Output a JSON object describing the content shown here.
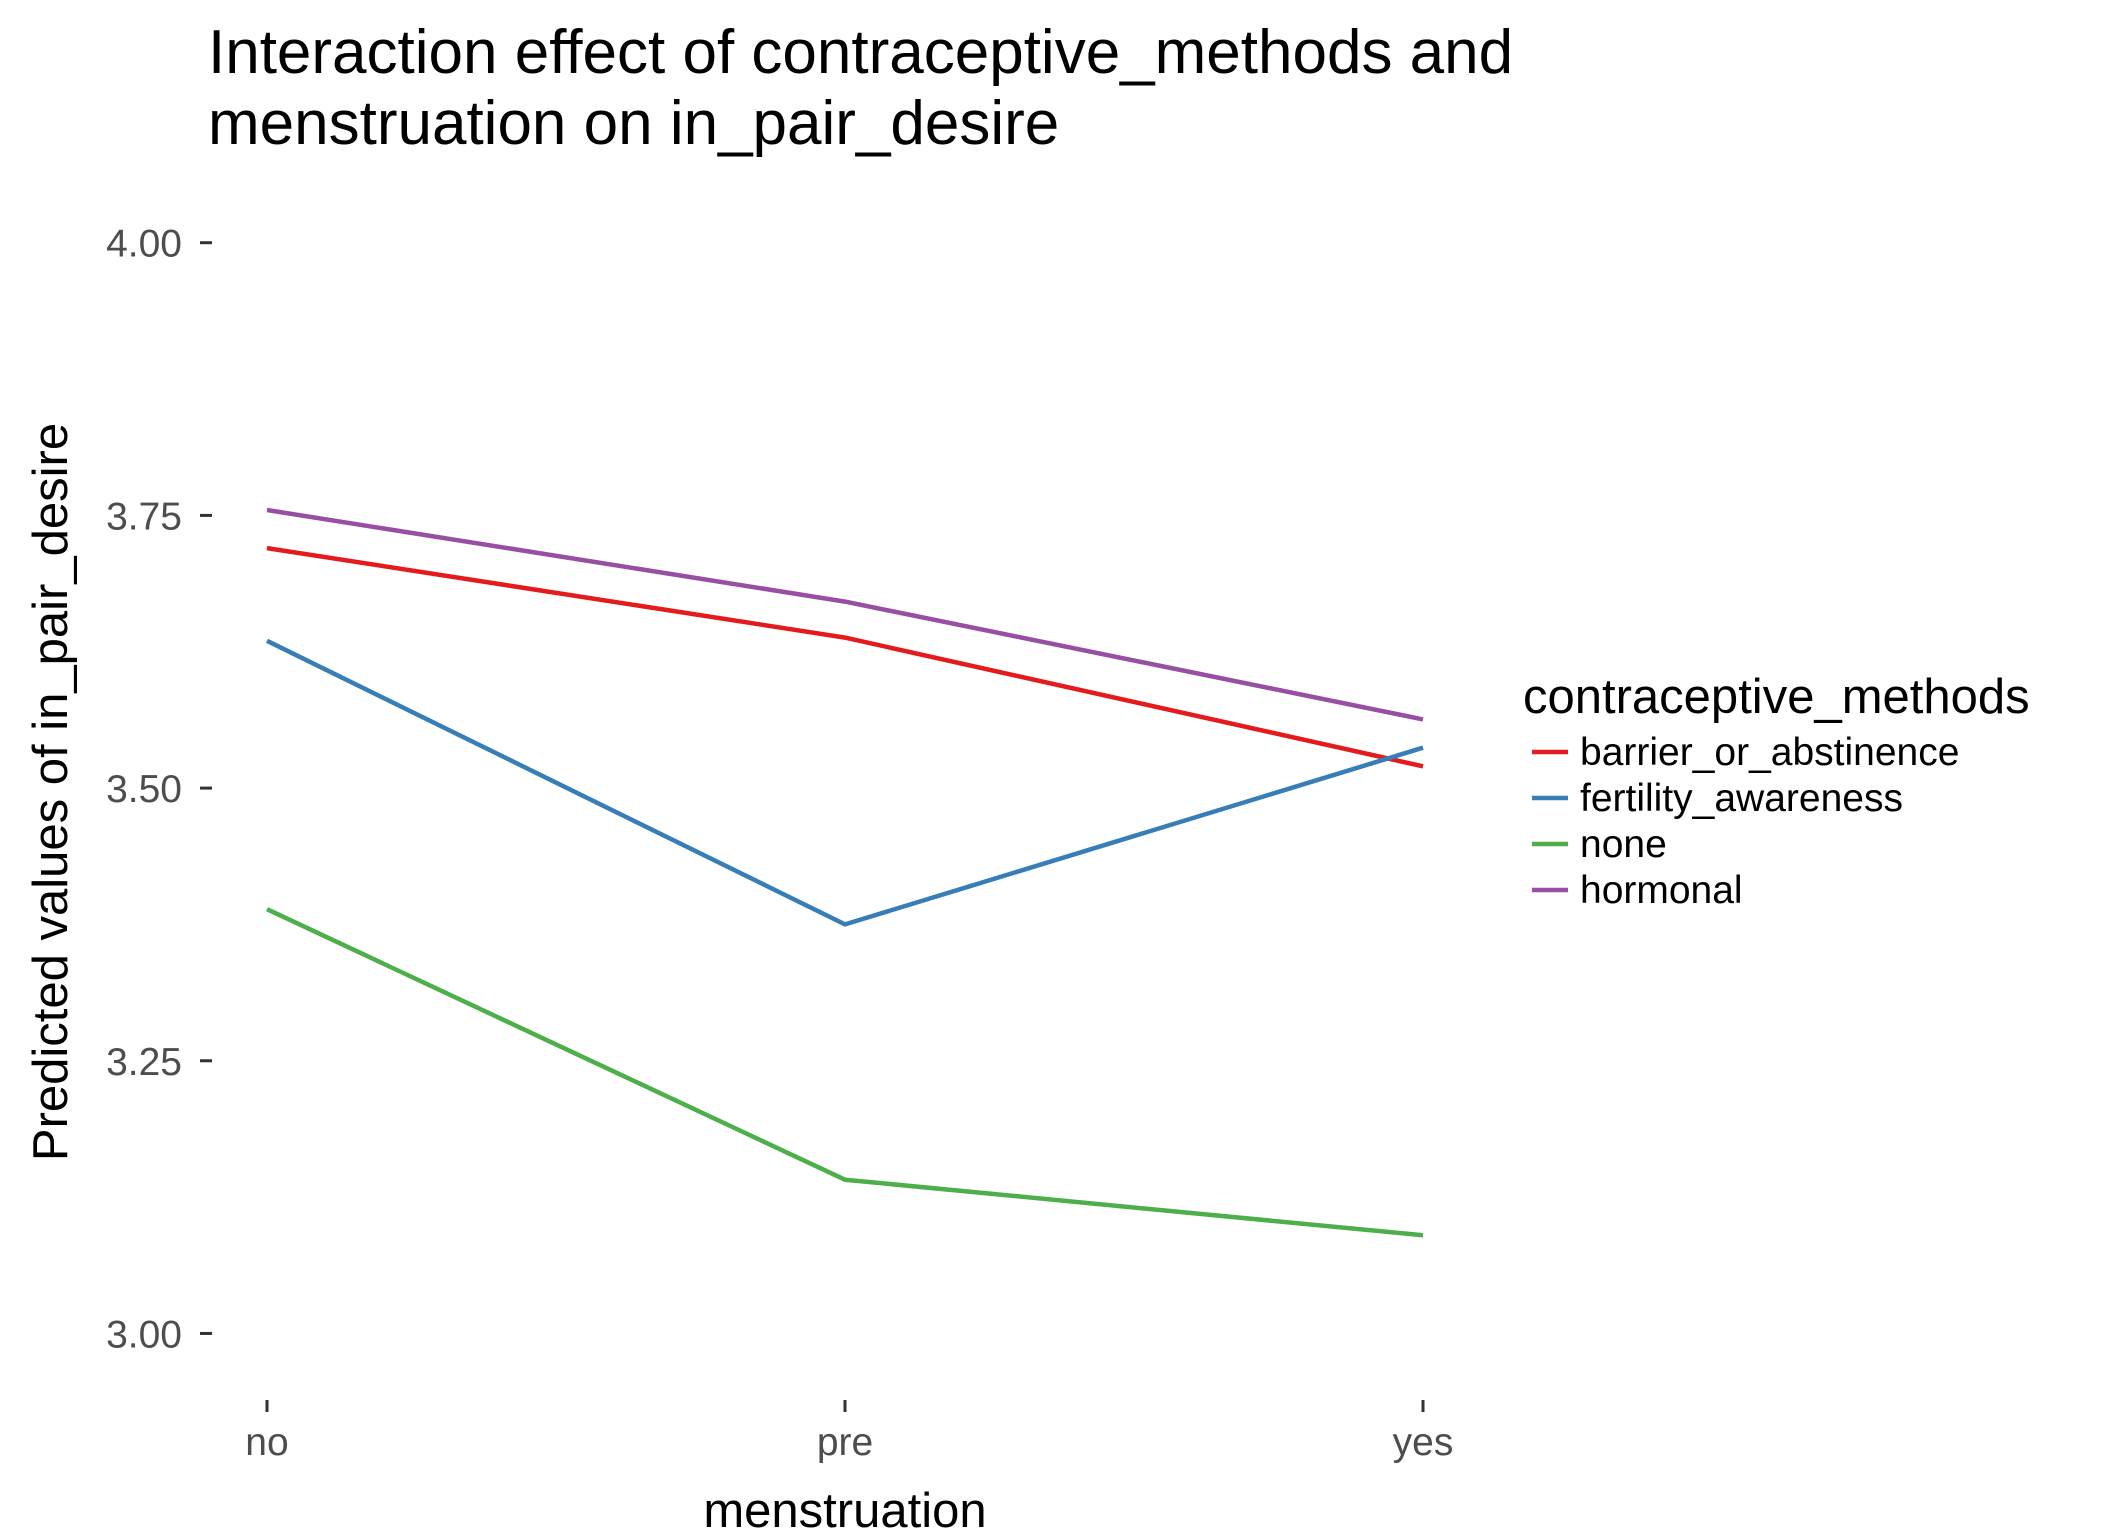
{
  "chart_data": {
    "type": "line",
    "title": [
      "Interaction effect of contraceptive_methods and",
      "menstruation on in_pair_desire"
    ],
    "xlabel": "menstruation",
    "ylabel": "Predicted values of in_pair_desire",
    "categories": [
      "no",
      "pre",
      "yes"
    ],
    "ylim": [
      2.95,
      4.03
    ],
    "yticks": [
      3.0,
      3.25,
      3.5,
      3.75,
      4.0
    ],
    "ytick_labels": [
      "3.00",
      "3.25",
      "3.50",
      "3.75",
      "4.00"
    ],
    "grid": false,
    "legend": {
      "title": "contraceptive_methods",
      "placement": "right"
    },
    "series": [
      {
        "name": "barrier_or_abstinence",
        "color": "#e41a1c",
        "values": [
          3.72,
          3.638,
          3.52
        ]
      },
      {
        "name": "fertility_awareness",
        "color": "#377eb8",
        "values": [
          3.635,
          3.375,
          3.537
        ]
      },
      {
        "name": "none",
        "color": "#4daf4a",
        "values": [
          3.389,
          3.141,
          3.09
        ]
      },
      {
        "name": "hormonal",
        "color": "#984ea3",
        "values": [
          3.755,
          3.671,
          3.563
        ]
      }
    ]
  }
}
